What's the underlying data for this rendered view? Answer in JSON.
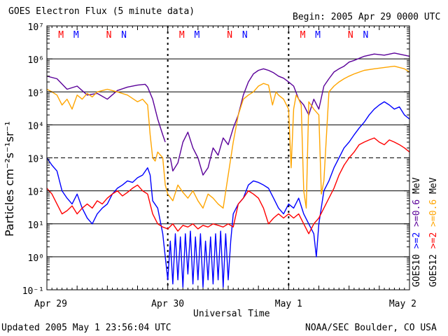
{
  "header": {
    "title": "GOES Electron Flux (5 minute data)",
    "begin": "Begin: 2005 Apr 29 0000 UTC"
  },
  "footer": {
    "updated": "Updated 2005 May  1 23:56:04 UTC",
    "credit": "NOAA/SEC Boulder, CO USA"
  },
  "colors": {
    "goes10_2mev": "#0000ff",
    "goes10_06mev": "#5a0099",
    "goes12_2mev": "#ff0000",
    "goes12_06mev": "#ffa500",
    "marker_M": "#0000ff",
    "marker_N_red": "#ff0000",
    "marker_N_blue": "#0000ff"
  },
  "chart_data": {
    "type": "line",
    "title": "GOES Electron Flux (5 minute data)",
    "xlabel": "Universal Time",
    "ylabel": "Particles cm⁻²s⁻¹sr⁻¹",
    "y_scale": "log",
    "ylim": [
      0.1,
      10000000
    ],
    "y_tick_labels": [
      "10⁻¹",
      "10⁰",
      "10¹",
      "10²",
      "10³",
      "10⁴",
      "10⁵",
      "10⁶",
      "10⁷"
    ],
    "x_tick_labels": [
      "Apr 29",
      "Apr 30",
      "May 1",
      "May 2"
    ],
    "xlim_hours": [
      0,
      72
    ],
    "threshold_line": 1000,
    "grid": "horizontal at each decade",
    "legend": {
      "position": "right side, vertical",
      "lines": [
        {
          "sat": "GOES10",
          "a": ">=2",
          "b": ">=0.6",
          "unit": "MeV"
        },
        {
          "sat": "GOES12",
          "a": ">=2",
          "b": ">=0.6",
          "unit": "MeV"
        }
      ]
    },
    "markers": [
      {
        "label": "M",
        "hour": 2.8,
        "color": "#ff0000"
      },
      {
        "label": "M",
        "hour": 5.8,
        "color": "#0000ff"
      },
      {
        "label": "N",
        "hour": 12.3,
        "color": "#ff0000"
      },
      {
        "label": "N",
        "hour": 15.3,
        "color": "#0000ff"
      },
      {
        "label": "M",
        "hour": 26.8,
        "color": "#ff0000"
      },
      {
        "label": "M",
        "hour": 29.8,
        "color": "#0000ff"
      },
      {
        "label": "N",
        "hour": 36.3,
        "color": "#ff0000"
      },
      {
        "label": "N",
        "hour": 39.3,
        "color": "#0000ff"
      },
      {
        "label": "M",
        "hour": 50.8,
        "color": "#ff0000"
      },
      {
        "label": "M",
        "hour": 53.8,
        "color": "#0000ff"
      },
      {
        "label": "N",
        "hour": 60.3,
        "color": "#ff0000"
      },
      {
        "label": "N",
        "hour": 63.3,
        "color": "#0000ff"
      }
    ],
    "series": [
      {
        "name": "GOES10 >=0.6 MeV",
        "color": "#5a0099",
        "points": [
          [
            0,
            300000
          ],
          [
            2,
            250000
          ],
          [
            4,
            120000
          ],
          [
            6,
            150000
          ],
          [
            8,
            80000
          ],
          [
            10,
            90000
          ],
          [
            12,
            60000
          ],
          [
            14,
            110000
          ],
          [
            16,
            140000
          ],
          [
            18,
            160000
          ],
          [
            19.5,
            170000
          ],
          [
            20,
            140000
          ],
          [
            21,
            60000
          ],
          [
            22,
            15000
          ],
          [
            23,
            5000
          ],
          [
            23.5,
            3000
          ],
          null,
          [
            24.5,
            1000
          ],
          [
            25,
            400
          ],
          [
            26,
            700
          ],
          [
            27,
            3000
          ],
          [
            28,
            6000
          ],
          [
            29,
            2000
          ],
          [
            30,
            1000
          ],
          [
            31,
            300
          ],
          [
            32,
            500
          ],
          [
            33,
            2000
          ],
          [
            34,
            1200
          ],
          [
            35,
            4000
          ],
          [
            36,
            2500
          ],
          [
            37,
            8000
          ],
          [
            38,
            20000
          ],
          [
            39,
            80000
          ],
          [
            40,
            200000
          ],
          [
            41,
            350000
          ],
          [
            42,
            450000
          ],
          [
            43,
            500000
          ],
          [
            44,
            450000
          ],
          [
            45,
            380000
          ],
          [
            46,
            300000
          ],
          [
            47,
            260000
          ],
          [
            48,
            200000
          ],
          [
            49,
            150000
          ],
          [
            50,
            60000
          ],
          [
            51,
            40000
          ],
          [
            52,
            20000
          ],
          [
            53,
            60000
          ],
          [
            54,
            30000
          ],
          [
            55,
            150000
          ],
          [
            56,
            250000
          ],
          [
            57,
            400000
          ],
          [
            58,
            500000
          ],
          [
            59,
            600000
          ],
          [
            60,
            800000
          ],
          [
            61,
            900000
          ],
          [
            63,
            1200000
          ],
          [
            65,
            1400000
          ],
          [
            67,
            1300000
          ],
          [
            69,
            1500000
          ],
          [
            71,
            1300000
          ],
          [
            72,
            1200000
          ]
        ]
      },
      {
        "name": "GOES12 >=0.6 MeV",
        "color": "#ffa500",
        "points": [
          [
            0,
            120000
          ],
          [
            1,
            100000
          ],
          [
            2,
            80000
          ],
          [
            3,
            40000
          ],
          [
            4,
            60000
          ],
          [
            5,
            30000
          ],
          [
            6,
            80000
          ],
          [
            7,
            60000
          ],
          [
            8,
            90000
          ],
          [
            9,
            70000
          ],
          [
            10,
            100000
          ],
          [
            12,
            120000
          ],
          [
            14,
            100000
          ],
          [
            16,
            80000
          ],
          [
            18,
            50000
          ],
          [
            19,
            60000
          ],
          [
            20,
            40000
          ],
          [
            20.5,
            5000
          ],
          [
            21,
            1000
          ],
          [
            21.5,
            800
          ],
          [
            22,
            1500
          ],
          [
            23,
            1000
          ],
          [
            23.5,
            150
          ],
          [
            24,
            80
          ],
          [
            25,
            50
          ],
          [
            26,
            150
          ],
          [
            27,
            90
          ],
          [
            28,
            60
          ],
          [
            29,
            100
          ],
          [
            30,
            50
          ],
          [
            31,
            30
          ],
          [
            32,
            80
          ],
          [
            33,
            60
          ],
          [
            34,
            40
          ],
          [
            35,
            30
          ],
          [
            36,
            300
          ],
          [
            37,
            3000
          ],
          [
            38,
            20000
          ],
          [
            39,
            60000
          ],
          [
            40,
            80000
          ],
          [
            41,
            100000
          ],
          [
            42,
            150000
          ],
          [
            43,
            180000
          ],
          [
            44,
            160000
          ],
          [
            44.8,
            40000
          ],
          [
            45.5,
            100000
          ],
          [
            46,
            80000
          ],
          [
            47,
            60000
          ],
          [
            48,
            30000
          ],
          [
            48.5,
            500
          ],
          [
            49,
            30000
          ],
          [
            49.5,
            80000
          ],
          [
            50,
            60000
          ],
          [
            50.5,
            40000
          ],
          [
            51,
            100
          ],
          [
            51.5,
            30
          ],
          [
            52,
            50000
          ],
          [
            53,
            30000
          ],
          [
            54,
            20000
          ],
          [
            54.5,
            80
          ],
          [
            55,
            200
          ],
          [
            56,
            100000
          ],
          [
            57,
            150000
          ],
          [
            58,
            200000
          ],
          [
            59,
            250000
          ],
          [
            60,
            300000
          ],
          [
            61,
            350000
          ],
          [
            63,
            450000
          ],
          [
            65,
            500000
          ],
          [
            67,
            550000
          ],
          [
            69,
            600000
          ],
          [
            71,
            500000
          ],
          [
            72,
            400000
          ]
        ]
      },
      {
        "name": "GOES10 >=2 MeV",
        "color": "#0000ff",
        "points": [
          [
            0,
            1000
          ],
          [
            1,
            600
          ],
          [
            2,
            400
          ],
          [
            3,
            100
          ],
          [
            4,
            60
          ],
          [
            5,
            40
          ],
          [
            6,
            80
          ],
          [
            7,
            30
          ],
          [
            8,
            15
          ],
          [
            9,
            10
          ],
          [
            10,
            20
          ],
          [
            11,
            30
          ],
          [
            12,
            40
          ],
          [
            13,
            80
          ],
          [
            14,
            120
          ],
          [
            15,
            150
          ],
          [
            16,
            200
          ],
          [
            17,
            180
          ],
          [
            18,
            250
          ],
          [
            19,
            300
          ],
          [
            20,
            500
          ],
          [
            20.5,
            300
          ],
          [
            21,
            50
          ],
          [
            22,
            30
          ],
          [
            23,
            5
          ],
          [
            23.5,
            1
          ],
          [
            24,
            0.2
          ],
          [
            24.5,
            3
          ],
          [
            25,
            0.15
          ],
          [
            25.5,
            5
          ],
          [
            26,
            0.2
          ],
          [
            26.5,
            4
          ],
          [
            27,
            0.12
          ],
          [
            27.5,
            5
          ],
          [
            28,
            0.3
          ],
          [
            28.5,
            6
          ],
          [
            29,
            0.15
          ],
          [
            29.5,
            4
          ],
          [
            30,
            0.2
          ],
          [
            30.5,
            5
          ],
          [
            31,
            0.12
          ],
          [
            31.5,
            3
          ],
          [
            32,
            0.2
          ],
          [
            32.5,
            4
          ],
          [
            33,
            0.15
          ],
          [
            33.5,
            5
          ],
          [
            34,
            0.2
          ],
          [
            34.5,
            6
          ],
          [
            35,
            0.12
          ],
          [
            35.5,
            5
          ],
          [
            36,
            0.2
          ],
          [
            36.5,
            3
          ],
          [
            37,
            20
          ],
          [
            38,
            40
          ],
          [
            39,
            60
          ],
          [
            40,
            150
          ],
          [
            41,
            200
          ],
          [
            42,
            180
          ],
          [
            43,
            150
          ],
          [
            44,
            120
          ],
          [
            45,
            60
          ],
          [
            46,
            30
          ],
          [
            47,
            20
          ],
          [
            48,
            40
          ],
          [
            49,
            30
          ],
          [
            50,
            60
          ],
          [
            51,
            20
          ],
          [
            52,
            10
          ],
          [
            53,
            5
          ],
          [
            53.5,
            1
          ],
          [
            54,
            10
          ],
          [
            55,
            100
          ],
          [
            56,
            200
          ],
          [
            57,
            500
          ],
          [
            58,
            1000
          ],
          [
            59,
            2000
          ],
          [
            60,
            3000
          ],
          [
            61,
            5000
          ],
          [
            62,
            8000
          ],
          [
            63,
            12000
          ],
          [
            64,
            20000
          ],
          [
            65,
            30000
          ],
          [
            66,
            40000
          ],
          [
            67,
            50000
          ],
          [
            68,
            40000
          ],
          [
            69,
            30000
          ],
          [
            70,
            35000
          ],
          [
            71,
            20000
          ],
          [
            72,
            15000
          ]
        ]
      },
      {
        "name": "GOES12 >=2 MeV",
        "color": "#ff0000",
        "points": [
          [
            0,
            120
          ],
          [
            1,
            80
          ],
          [
            2,
            40
          ],
          [
            3,
            20
          ],
          [
            4,
            25
          ],
          [
            5,
            35
          ],
          [
            6,
            20
          ],
          [
            7,
            30
          ],
          [
            8,
            40
          ],
          [
            9,
            30
          ],
          [
            10,
            50
          ],
          [
            11,
            40
          ],
          [
            12,
            60
          ],
          [
            13,
            80
          ],
          [
            14,
            100
          ],
          [
            15,
            70
          ],
          [
            16,
            90
          ],
          [
            17,
            120
          ],
          [
            18,
            150
          ],
          [
            19,
            100
          ],
          [
            20,
            80
          ],
          [
            21,
            20
          ],
          [
            22,
            10
          ],
          [
            23,
            8
          ],
          [
            24,
            7
          ],
          [
            25,
            10
          ],
          [
            26,
            6
          ],
          [
            27,
            9
          ],
          [
            28,
            8
          ],
          [
            29,
            10
          ],
          [
            30,
            7
          ],
          [
            31,
            9
          ],
          [
            32,
            8
          ],
          [
            33,
            10
          ],
          [
            34,
            9
          ],
          [
            35,
            8
          ],
          [
            36,
            10
          ],
          [
            37,
            8
          ],
          [
            38,
            40
          ],
          [
            39,
            60
          ],
          [
            40,
            100
          ],
          [
            41,
            80
          ],
          [
            42,
            60
          ],
          [
            43,
            30
          ],
          [
            44,
            10
          ],
          [
            45,
            15
          ],
          [
            46,
            20
          ],
          [
            47,
            15
          ],
          [
            48,
            20
          ],
          [
            49,
            15
          ],
          [
            50,
            20
          ],
          [
            51,
            10
          ],
          [
            52,
            5
          ],
          [
            53,
            10
          ],
          [
            54,
            15
          ],
          [
            55,
            30
          ],
          [
            56,
            60
          ],
          [
            57,
            120
          ],
          [
            58,
            300
          ],
          [
            59,
            600
          ],
          [
            60,
            1000
          ],
          [
            61,
            1500
          ],
          [
            62,
            2500
          ],
          [
            63,
            3000
          ],
          [
            64,
            3500
          ],
          [
            65,
            4000
          ],
          [
            66,
            3000
          ],
          [
            67,
            2500
          ],
          [
            68,
            3500
          ],
          [
            69,
            3000
          ],
          [
            70,
            2500
          ],
          [
            71,
            2000
          ],
          [
            72,
            1500
          ]
        ]
      }
    ]
  }
}
